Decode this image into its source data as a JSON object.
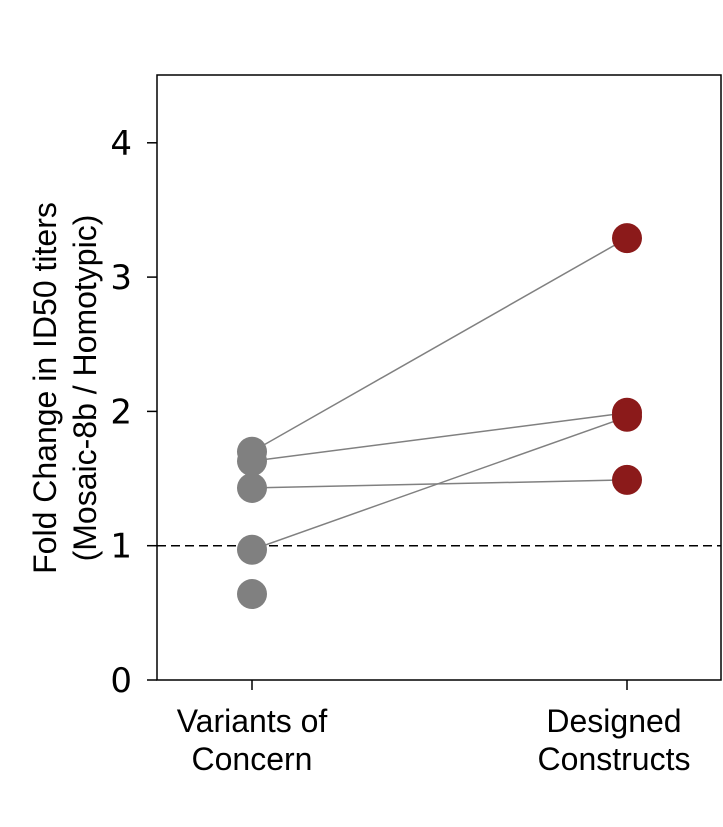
{
  "chart_data": {
    "type": "scatter",
    "ylabel_line1": "Fold Change in ID50 titers",
    "ylabel_line2": "(Mosaic-8b / Homotypic)",
    "categories": [
      {
        "line1": "Variants of",
        "line2": "Concern"
      },
      {
        "line1": "Designed",
        "line2": "Constructs"
      }
    ],
    "ylim": [
      0,
      4.5
    ],
    "yticks": [
      0,
      1,
      2,
      3,
      4
    ],
    "reference_line": 1,
    "grid": false,
    "colors": {
      "variants": "#808080",
      "constructs": "#8b1a1a",
      "connector": "#808080",
      "reference": "#000000"
    },
    "variants_of_concern": [
      1.7,
      1.63,
      1.43,
      0.97,
      0.64
    ],
    "designed_constructs": [
      3.29,
      1.99,
      1.96,
      1.49
    ],
    "paired": [
      {
        "from": 1.7,
        "to": 3.29
      },
      {
        "from": 1.63,
        "to": 1.99
      },
      {
        "from": 1.43,
        "to": 1.49
      },
      {
        "from": 0.97,
        "to": 1.96
      }
    ]
  }
}
